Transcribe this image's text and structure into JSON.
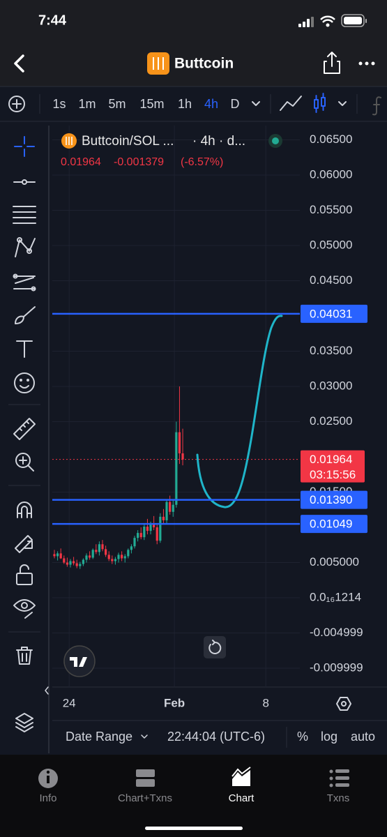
{
  "status_bar": {
    "time": "7:44"
  },
  "header": {
    "title": "Buttcoin"
  },
  "toolbar": {
    "intervals": [
      "1s",
      "1m",
      "5m",
      "15m",
      "1h",
      "4h",
      "D"
    ]
  },
  "legend": {
    "symbol": "Buttcoin/SOL ...",
    "meta": "· 4h · d...",
    "close": "0.01964",
    "change": "-0.001379",
    "change_pct": "(-6.57%)"
  },
  "chart_data": {
    "type": "candlestick",
    "up_color": "#22ab94",
    "down_color": "#f23645",
    "candles": [
      [
        0.0062,
        0.0068,
        0.0056,
        0.0059
      ],
      [
        0.0059,
        0.0066,
        0.0053,
        0.0063
      ],
      [
        0.0063,
        0.007,
        0.0055,
        0.0056
      ],
      [
        0.0056,
        0.006,
        0.0048,
        0.005
      ],
      [
        0.005,
        0.0057,
        0.0044,
        0.0047
      ],
      [
        0.0047,
        0.0055,
        0.0043,
        0.0052
      ],
      [
        0.0052,
        0.0058,
        0.0046,
        0.0049
      ],
      [
        0.0049,
        0.0054,
        0.0042,
        0.0045
      ],
      [
        0.0045,
        0.0051,
        0.0041,
        0.0048
      ],
      [
        0.0048,
        0.0056,
        0.0045,
        0.0054
      ],
      [
        0.0054,
        0.0063,
        0.005,
        0.006
      ],
      [
        0.006,
        0.0066,
        0.0054,
        0.0057
      ],
      [
        0.0057,
        0.007,
        0.0055,
        0.0068
      ],
      [
        0.0068,
        0.0076,
        0.0062,
        0.0065
      ],
      [
        0.0065,
        0.008,
        0.006,
        0.0076
      ],
      [
        0.0076,
        0.0082,
        0.0066,
        0.0069
      ],
      [
        0.0069,
        0.0074,
        0.0058,
        0.0061
      ],
      [
        0.0061,
        0.0066,
        0.0052,
        0.0055
      ],
      [
        0.0055,
        0.006,
        0.0048,
        0.0052
      ],
      [
        0.0052,
        0.0058,
        0.0047,
        0.0055
      ],
      [
        0.0055,
        0.0064,
        0.005,
        0.0061
      ],
      [
        0.0061,
        0.0066,
        0.0052,
        0.0056
      ],
      [
        0.0056,
        0.0062,
        0.005,
        0.0059
      ],
      [
        0.0059,
        0.007,
        0.0056,
        0.0068
      ],
      [
        0.0068,
        0.0076,
        0.0063,
        0.0073
      ],
      [
        0.0073,
        0.0088,
        0.007,
        0.0085
      ],
      [
        0.0085,
        0.0096,
        0.008,
        0.0092
      ],
      [
        0.0092,
        0.01,
        0.0083,
        0.0086
      ],
      [
        0.0086,
        0.0104,
        0.0082,
        0.0101
      ],
      [
        0.0101,
        0.0112,
        0.009,
        0.0095
      ],
      [
        0.0095,
        0.0108,
        0.009,
        0.0105
      ],
      [
        0.0105,
        0.0116,
        0.0096,
        0.01
      ],
      [
        0.01,
        0.0105,
        0.0076,
        0.0081
      ],
      [
        0.0081,
        0.012,
        0.0078,
        0.0115
      ],
      [
        0.0115,
        0.0126,
        0.0104,
        0.011
      ],
      [
        0.011,
        0.014,
        0.0106,
        0.0136
      ],
      [
        0.0136,
        0.0145,
        0.0118,
        0.0122
      ],
      [
        0.0122,
        0.014,
        0.0115,
        0.0132
      ],
      [
        0.0132,
        0.025,
        0.0128,
        0.0235
      ],
      [
        0.0235,
        0.03,
        0.019,
        0.0205
      ],
      [
        0.0205,
        0.024,
        0.0188,
        0.01964
      ]
    ],
    "xlim": [
      -0.65,
      76.5
    ],
    "xticks": [
      {
        "value": 4.6,
        "label": "24"
      },
      {
        "value": 37.4,
        "label": "Feb"
      },
      {
        "value": 65.9,
        "label": "8"
      }
    ],
    "ylim": [
      -0.01267,
      0.06703
    ],
    "yticks": [
      {
        "value": 0.065,
        "label": "0.06500"
      },
      {
        "value": 0.06,
        "label": "0.06000"
      },
      {
        "value": 0.055,
        "label": "0.05500"
      },
      {
        "value": 0.05,
        "label": "0.05000"
      },
      {
        "value": 0.045,
        "label": "0.04500"
      },
      {
        "value": 0.035,
        "label": "0.03500"
      },
      {
        "value": 0.03,
        "label": "0.03000"
      },
      {
        "value": 0.025,
        "label": "0.02500"
      },
      {
        "value": 0.015,
        "label": "0.01500"
      },
      {
        "value": 0.005,
        "label": "0.005000"
      },
      {
        "value": 1.214e-17,
        "label": "0.0₁₆1214"
      },
      {
        "value": -0.004999,
        "label": "-0.004999"
      },
      {
        "value": -0.009999,
        "label": "-0.009999"
      }
    ],
    "grid": true,
    "hlines": [
      {
        "value": 0.04031,
        "label": "0.04031",
        "color": "#2962ff"
      },
      {
        "value": 0.0139,
        "label": "0.01390",
        "color": "#2962ff"
      },
      {
        "value": 0.01049,
        "label": "0.01049",
        "color": "#2962ff"
      }
    ],
    "last": {
      "value": 0.01964,
      "label": "0.01964",
      "countdown": "03:15:56",
      "color": "#f23645"
    }
  },
  "footer_bar": {
    "date_range": "Date Range",
    "time": "22:44:04 (UTC-6)",
    "percent": "%",
    "log": "log",
    "auto": "auto"
  },
  "tabs": [
    "Info",
    "Chart+Txns",
    "Chart",
    "Txns"
  ]
}
